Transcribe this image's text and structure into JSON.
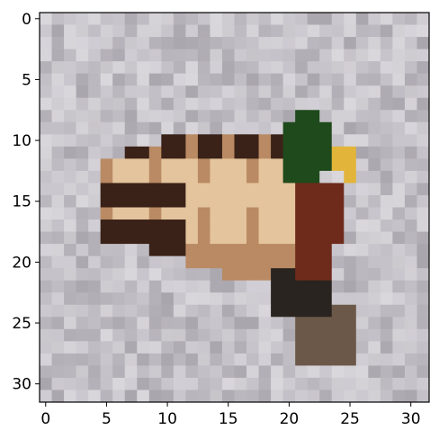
{
  "image": {
    "subject": "mallard duck swimming on grey water",
    "grid_size": [
      32,
      32
    ],
    "colors": {
      "water": "#c4c1c8",
      "water_light": "#d9d7dc",
      "water_dark": "#a9a5ad",
      "wing_dark": "#3a2218",
      "wing_light": "#e4c49c",
      "wing_mid": "#b98a63",
      "breast": "#6e2a1a",
      "head": "#1f4a1c",
      "bill": "#e2b43a",
      "shadow": "#2a2420",
      "tail": "#6c5848"
    }
  },
  "axes": {
    "xticks": [
      "0",
      "5",
      "10",
      "15",
      "20",
      "25",
      "30"
    ],
    "yticks": [
      "0",
      "5",
      "10",
      "15",
      "20",
      "25",
      "30"
    ],
    "xlim": [
      -0.5,
      31.5
    ],
    "ylim": [
      31.5,
      -0.5
    ]
  }
}
